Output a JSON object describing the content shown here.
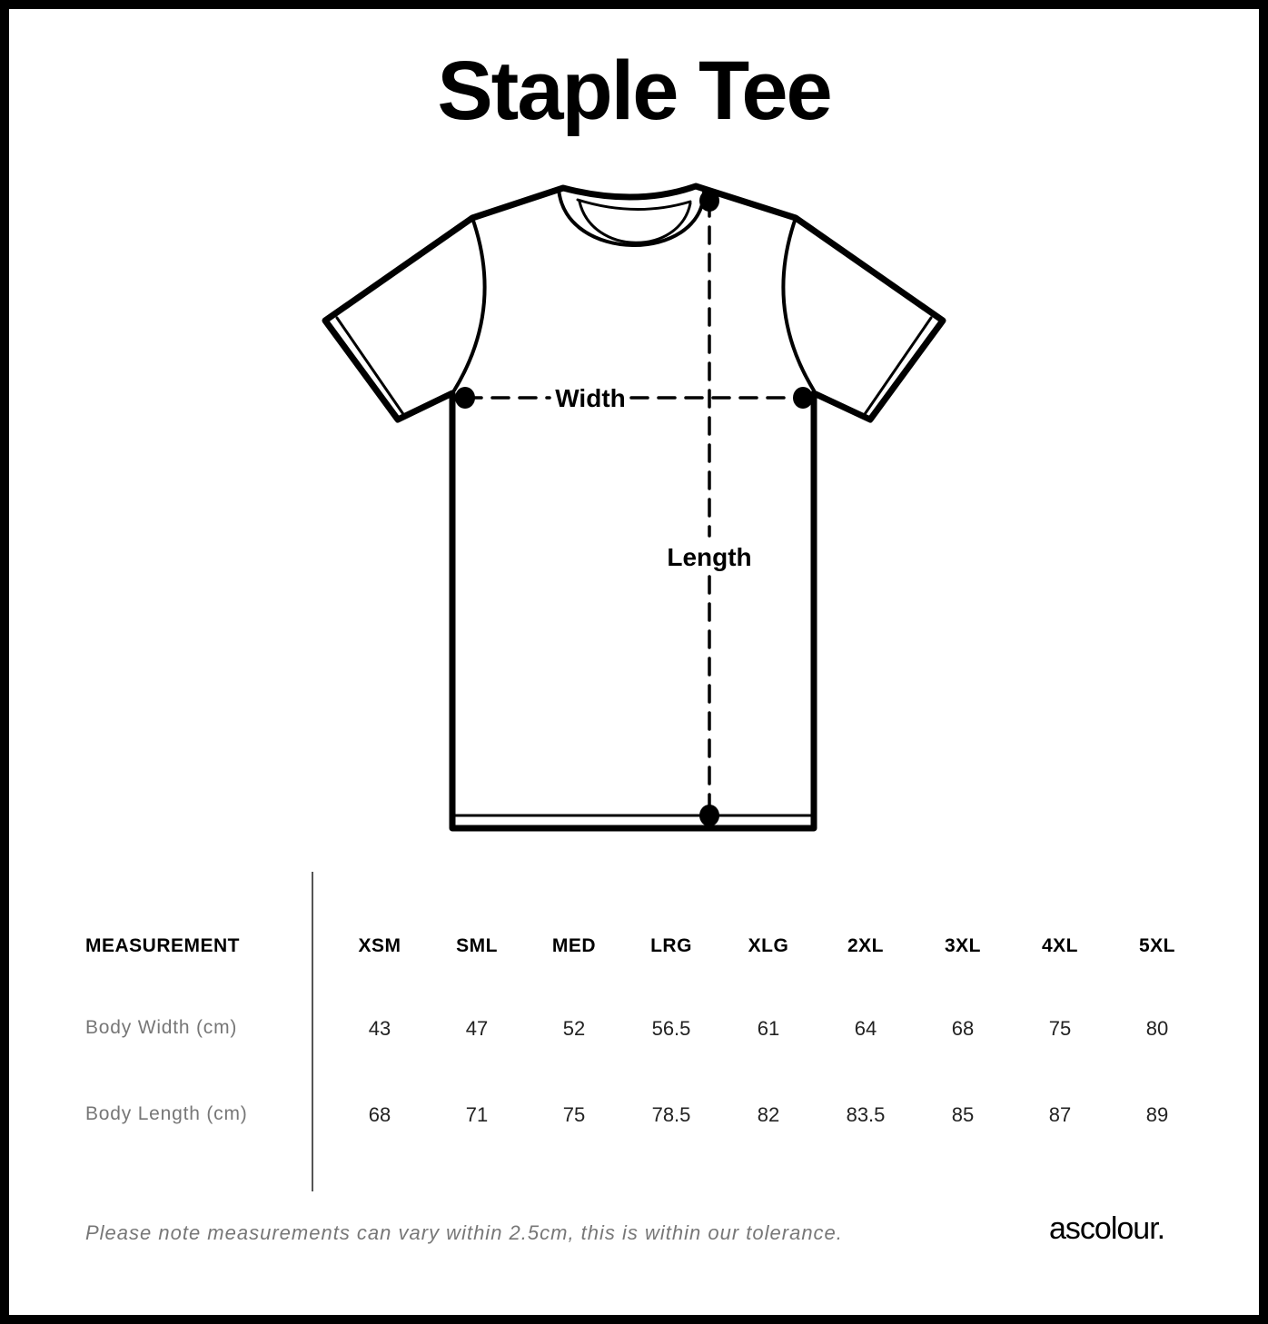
{
  "title": "Staple Tee",
  "diagram": {
    "width_label": "Width",
    "length_label": "Length"
  },
  "table": {
    "header_label": "MEASUREMENT",
    "sizes": [
      "XSM",
      "SML",
      "MED",
      "LRG",
      "XLG",
      "2XL",
      "3XL",
      "4XL",
      "5XL"
    ],
    "rows": [
      {
        "label": "Body Width (cm)",
        "values": [
          "43",
          "47",
          "52",
          "56.5",
          "61",
          "64",
          "68",
          "75",
          "80"
        ]
      },
      {
        "label": "Body Length (cm)",
        "values": [
          "68",
          "71",
          "75",
          "78.5",
          "82",
          "83.5",
          "85",
          "87",
          "89"
        ]
      }
    ]
  },
  "note": "Please note measurements can vary within 2.5cm, this is within our tolerance.",
  "brand": "ascolour."
}
